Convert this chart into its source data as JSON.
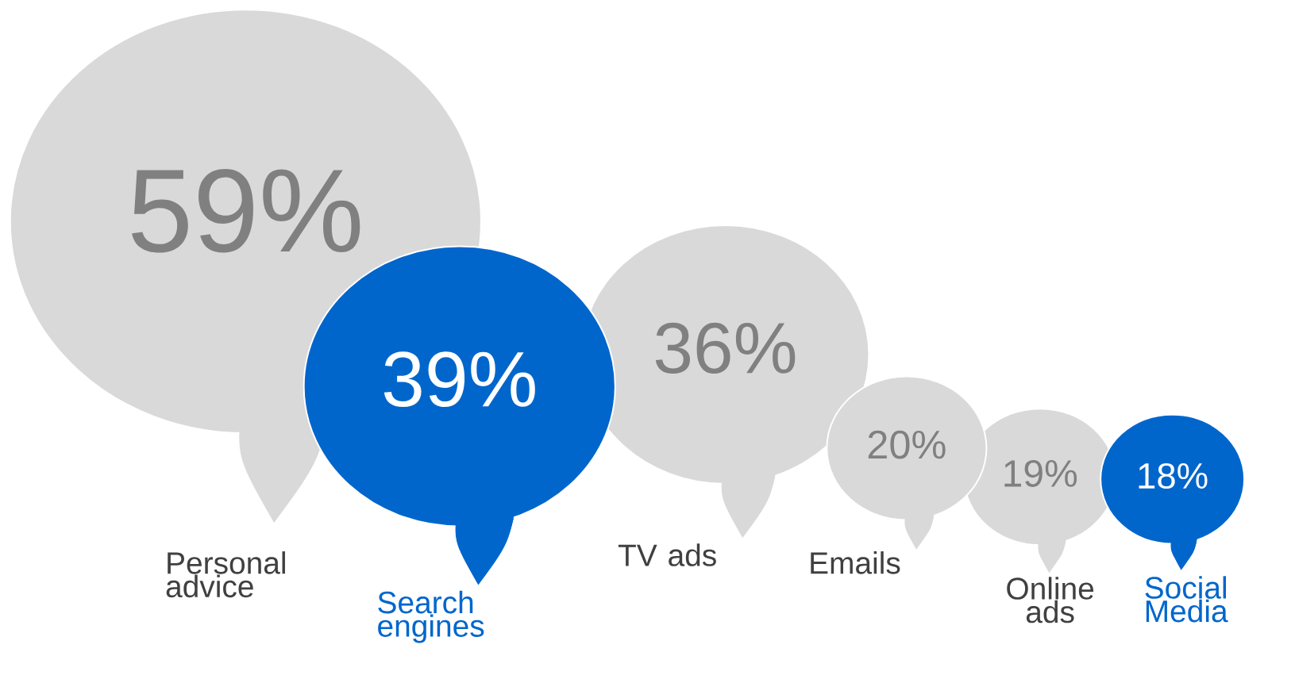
{
  "chart_data": {
    "type": "other",
    "categories": [
      "Personal advice",
      "Search engines",
      "TV ads",
      "Emails",
      "Online ads",
      "Social Media"
    ],
    "values": [
      59,
      39,
      36,
      20,
      19,
      18
    ],
    "colors": [
      "#d9d9d9",
      "#0066cc",
      "#d9d9d9",
      "#d9d9d9",
      "#d9d9d9",
      "#0066cc"
    ],
    "value_labels": [
      "59%",
      "39%",
      "36%",
      "20%",
      "19%",
      "18%"
    ]
  }
}
